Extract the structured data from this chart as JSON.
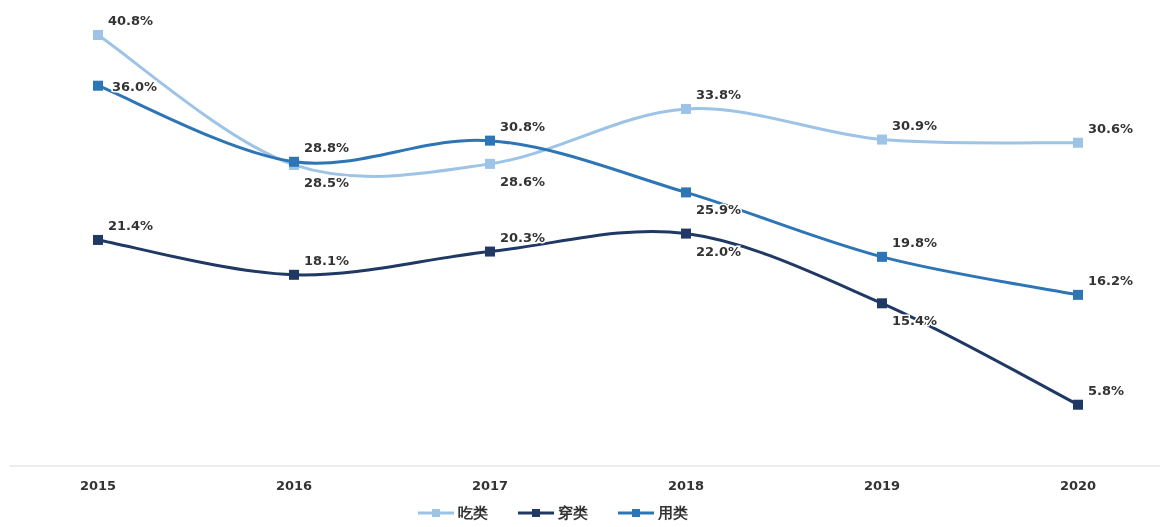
{
  "chart_data": {
    "type": "line",
    "categories": [
      "2015",
      "2016",
      "2017",
      "2018",
      "2019",
      "2020"
    ],
    "series": [
      {
        "name": "吃类",
        "color": "#9dc3e6",
        "values": [
          40.8,
          28.5,
          28.6,
          33.8,
          30.9,
          30.6
        ],
        "value_labels": [
          "40.8%",
          "28.5%",
          "28.6%",
          "33.8%",
          "30.9%",
          "30.6%"
        ]
      },
      {
        "name": "穿类",
        "color": "#1f3864",
        "values": [
          21.4,
          18.1,
          20.3,
          22.0,
          15.4,
          5.8
        ],
        "value_labels": [
          "21.4%",
          "18.1%",
          "20.3%",
          "22.0%",
          "15.4%",
          "5.8%"
        ]
      },
      {
        "name": "用类",
        "color": "#2e75b6",
        "values": [
          36.0,
          28.8,
          30.8,
          25.9,
          19.8,
          16.2
        ],
        "value_labels": [
          "36.0%",
          "28.8%",
          "30.8%",
          "25.9%",
          "19.8%",
          "16.2%"
        ]
      }
    ],
    "marker": "square",
    "legend": "bottom"
  }
}
